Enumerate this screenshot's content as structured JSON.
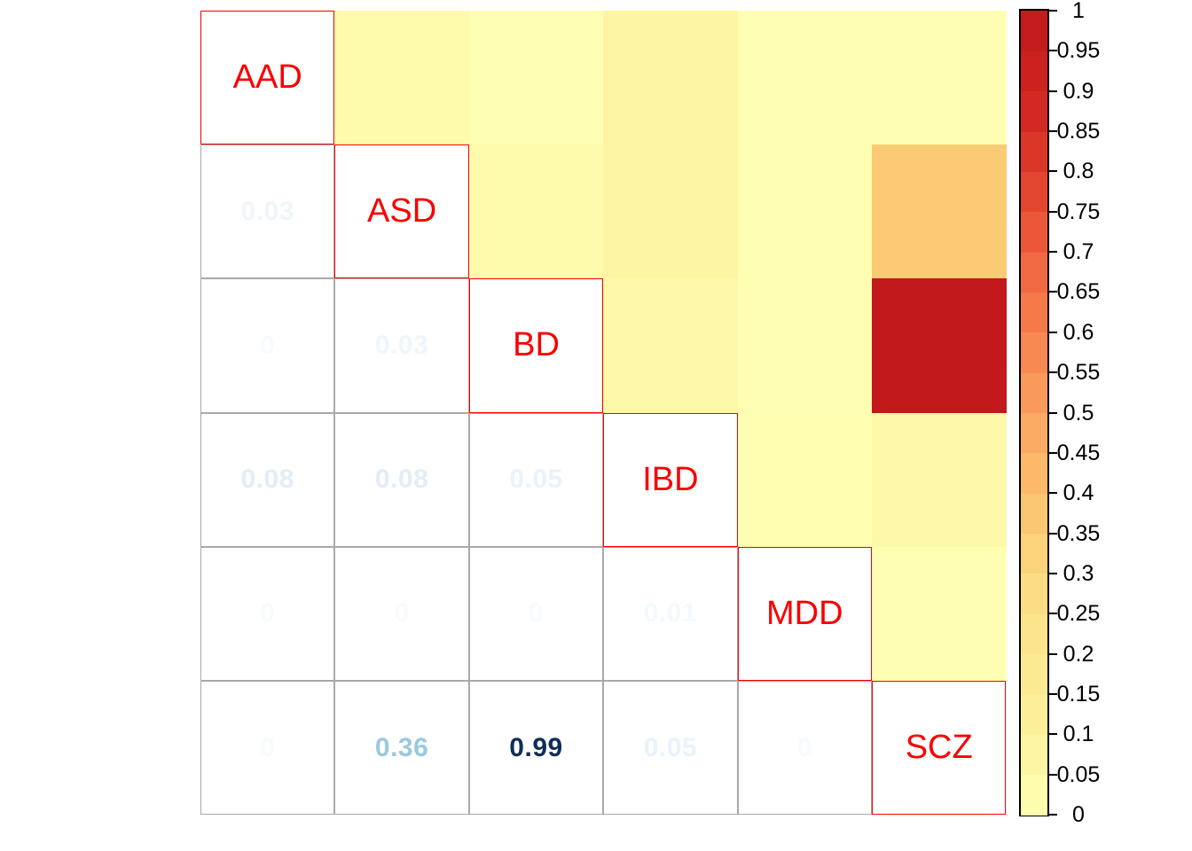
{
  "chart_data": {
    "type": "heatmap",
    "title": "",
    "labels": [
      "AAD",
      "ASD",
      "BD",
      "IBD",
      "MDD",
      "SCZ"
    ],
    "matrix": [
      [
        null,
        0.03,
        0,
        0.08,
        0,
        0
      ],
      [
        0.03,
        null,
        0.03,
        0.08,
        0,
        0.36
      ],
      [
        0,
        0.03,
        null,
        0.05,
        0,
        0.99
      ],
      [
        0.08,
        0.08,
        0.05,
        null,
        0.01,
        0.05
      ],
      [
        0,
        0,
        0,
        0.01,
        null,
        0
      ],
      [
        0,
        0.36,
        0.99,
        0.05,
        0,
        null
      ]
    ],
    "upper_triangle_style": "color",
    "lower_triangle_style": "number",
    "legend_position": "right",
    "colorbar": {
      "min": 0,
      "max": 1,
      "tick_labels": [
        "1",
        "0.95",
        "0.9",
        "0.85",
        "0.8",
        "0.75",
        "0.7",
        "0.65",
        "0.6",
        "0.55",
        "0.5",
        "0.45",
        "0.4",
        "0.35",
        "0.3",
        "0.25",
        "0.2",
        "0.15",
        "0.1",
        "0.05",
        "0"
      ]
    }
  },
  "colors": {
    "background": "#FFFFFF",
    "diag_label_text": "#F80000",
    "diag_cell_border": "#F40000",
    "grid_line": "#A9A9A9",
    "colorbar_border": "#000000",
    "heat_palette_stops": [
      {
        "v": 0.0,
        "c": "#FFFFB3"
      },
      {
        "v": 0.1,
        "c": "#FCF29C"
      },
      {
        "v": 0.2,
        "c": "#FBE78F"
      },
      {
        "v": 0.3,
        "c": "#FBD980"
      },
      {
        "v": 0.4,
        "c": "#FBC06C"
      },
      {
        "v": 0.5,
        "c": "#F9A25F"
      },
      {
        "v": 0.6,
        "c": "#F7814D"
      },
      {
        "v": 0.7,
        "c": "#EF613E"
      },
      {
        "v": 0.8,
        "c": "#DE3D2A"
      },
      {
        "v": 0.9,
        "c": "#CE2420"
      },
      {
        "v": 1.0,
        "c": "#C0181C"
      }
    ],
    "number_palette_stops": [
      {
        "v": 0.0,
        "c": "#F7FBFE"
      },
      {
        "v": 0.08,
        "c": "#E2EDF7"
      },
      {
        "v": 0.2,
        "c": "#C9DEEE"
      },
      {
        "v": 0.36,
        "c": "#9AC8E0"
      },
      {
        "v": 0.6,
        "c": "#4F93C6"
      },
      {
        "v": 0.8,
        "c": "#2166AC"
      },
      {
        "v": 1.0,
        "c": "#0E2C55"
      }
    ]
  }
}
